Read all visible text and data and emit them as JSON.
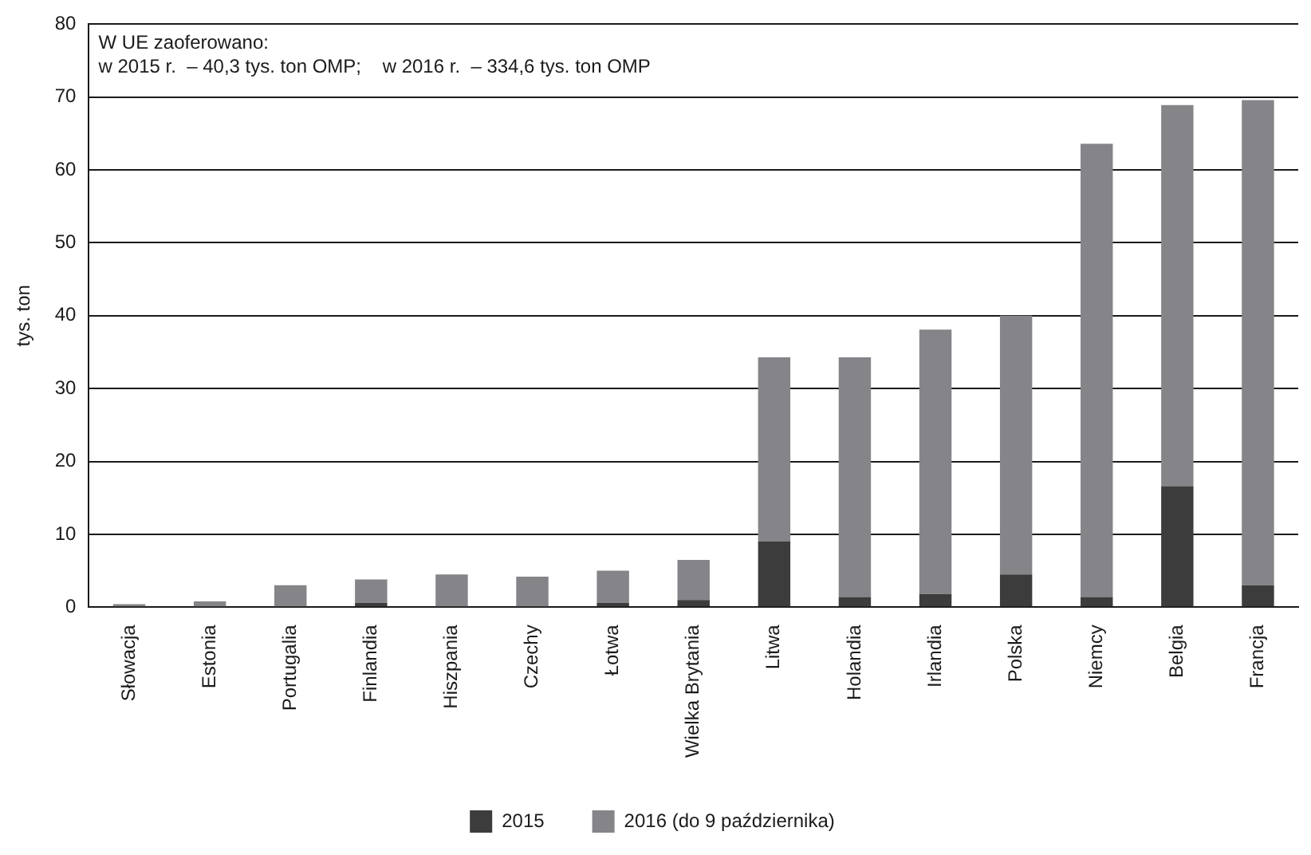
{
  "chart_data": {
    "type": "bar",
    "stacked": true,
    "ylabel": "tys. ton",
    "categories": [
      "Słowacja",
      "Estonia",
      "Portugalia",
      "Finlandia",
      "Hiszpania",
      "Czechy",
      "Łotwa",
      "Wielka Brytania",
      "Litwa",
      "Holandia",
      "Irlandia",
      "Polska",
      "Niemcy",
      "Belgia",
      "Francja"
    ],
    "series": [
      {
        "name": "2015",
        "color": "#3c3c3c",
        "values": [
          0,
          0,
          0,
          0.6,
          0,
          0,
          0.6,
          1.0,
          9.0,
          1.4,
          1.8,
          4.5,
          1.4,
          16.6,
          3.0
        ]
      },
      {
        "name": "2016 (do 9 października)",
        "color": "#858589",
        "values": [
          0.4,
          0.8,
          3.0,
          3.2,
          4.5,
          4.2,
          4.4,
          5.5,
          25.3,
          32.9,
          36.3,
          35.5,
          62.2,
          52.3,
          66.6
        ]
      }
    ],
    "ylim": [
      0,
      80
    ],
    "yticks": [
      0,
      10,
      20,
      30,
      40,
      50,
      60,
      70,
      80
    ],
    "grid": "y",
    "legend": "bottom",
    "annotations": [
      "W UE zaoferowano:",
      "w 2015 r.  – 40,3 tys. ton OMP;    w 2016 r.  – 334,6 tys. ton OMP"
    ]
  }
}
